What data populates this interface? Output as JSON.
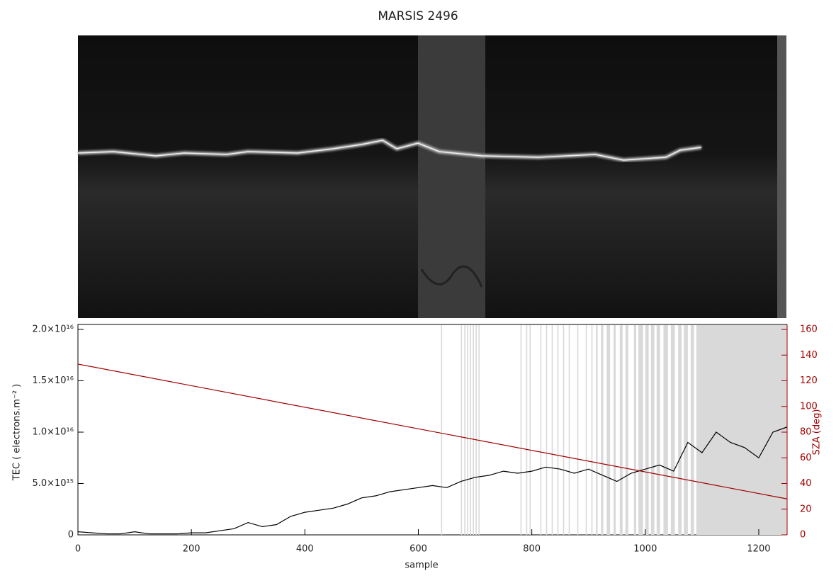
{
  "chart_data": {
    "type": "line",
    "title": "MARSIS 2496",
    "xlabel": "sample",
    "ylabel": "TEC ( electrons.m⁻² )",
    "y2label": "SZA (deg)",
    "xlim": [
      0,
      1250
    ],
    "xticks": [
      0,
      200,
      400,
      600,
      800,
      1000,
      1200
    ],
    "ylim": [
      0,
      2e+16
    ],
    "yticks": [
      0,
      {
        "value": 5000000000000000.0,
        "label": "5.0×10¹⁵"
      },
      {
        "value": 1e+16,
        "label": "1.0×10¹⁶"
      },
      {
        "value": 1.5e+16,
        "label": "1.5×10¹⁶"
      },
      {
        "value": 2e+16,
        "label": "2.0×10¹⁶"
      }
    ],
    "y2lim": [
      0,
      160
    ],
    "y2ticks": [
      0,
      20,
      40,
      60,
      80,
      100,
      120,
      140,
      160
    ],
    "y2color": "#a00000",
    "x": [
      0,
      25,
      50,
      75,
      100,
      125,
      150,
      175,
      200,
      225,
      250,
      275,
      300,
      325,
      350,
      375,
      400,
      425,
      450,
      475,
      500,
      525,
      550,
      575,
      600,
      625,
      650,
      675,
      700,
      725,
      750,
      775,
      800,
      825,
      850,
      875,
      900,
      925,
      950,
      975,
      1000,
      1025,
      1050,
      1075,
      1100,
      1125,
      1150,
      1175,
      1200,
      1225,
      1250
    ],
    "series": [
      {
        "color": "#000000",
        "values": [
          300000000000000.0,
          200000000000000.0,
          100000000000000.0,
          100000000000000.0,
          300000000000000.0,
          100000000000000.0,
          100000000000000.0,
          100000000000000.0,
          200000000000000.0,
          200000000000000.0,
          400000000000000.0,
          600000000000000.0,
          1200000000000000.0,
          800000000000000.0,
          1000000000000000.0,
          1800000000000000.0,
          2200000000000000.0,
          2400000000000000.0,
          2600000000000000.0,
          3000000000000000.0,
          3600000000000000.0,
          3800000000000000.0,
          4200000000000000.0,
          4400000000000000.0,
          4600000000000000.0,
          4800000000000000.0,
          4600000000000000.0,
          5200000000000000.0,
          5600000000000000.0,
          5800000000000000.0,
          6200000000000000.0,
          6000000000000000.0,
          6200000000000000.0,
          6600000000000000.0,
          6400000000000000.0,
          6000000000000000.0,
          6400000000000000.0,
          5800000000000000.0,
          5200000000000000.0,
          6000000000000000.0,
          6400000000000000.0,
          6800000000000000.0,
          6200000000000000.0,
          9000000000000000.0,
          8000000000000000.0,
          1e+16,
          9000000000000000.0,
          8500000000000000.0,
          7500000000000000.0,
          1e+16,
          1.05e+16
        ]
      },
      {
        "color": "#a00000",
        "axis": "y2",
        "x": [
          0,
          1250
        ],
        "values": [
          133,
          28
        ]
      }
    ],
    "flagged_ranges": [
      [
        640,
        642
      ],
      [
        675,
        677
      ],
      [
        681,
        683
      ],
      [
        686,
        688
      ],
      [
        691,
        693
      ],
      [
        696,
        698
      ],
      [
        701,
        703
      ],
      [
        706,
        708
      ],
      [
        780,
        782
      ],
      [
        790,
        792
      ],
      [
        796,
        798
      ],
      [
        815,
        817
      ],
      [
        825,
        827
      ],
      [
        835,
        837
      ],
      [
        845,
        847
      ],
      [
        855,
        857
      ],
      [
        865,
        867
      ],
      [
        880,
        882
      ],
      [
        895,
        897
      ],
      [
        905,
        907
      ],
      [
        913,
        916
      ],
      [
        922,
        926
      ],
      [
        932,
        938
      ],
      [
        944,
        948
      ],
      [
        955,
        960
      ],
      [
        965,
        970
      ],
      [
        980,
        984
      ],
      [
        988,
        996
      ],
      [
        1000,
        1006
      ],
      [
        1010,
        1016
      ],
      [
        1020,
        1026
      ],
      [
        1032,
        1040
      ],
      [
        1045,
        1052
      ],
      [
        1058,
        1064
      ],
      [
        1068,
        1075
      ],
      [
        1080,
        1086
      ],
      [
        1090,
        1250
      ]
    ],
    "flag_color": "#d9d9d9"
  }
}
